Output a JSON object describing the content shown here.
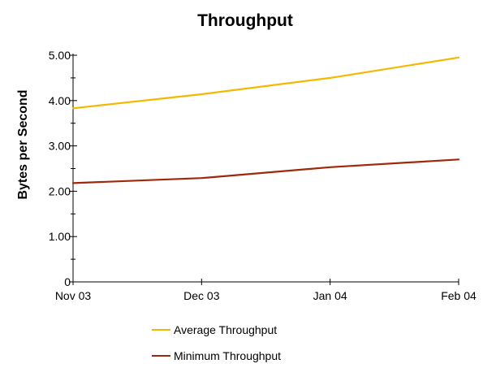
{
  "chart_data": {
    "type": "line",
    "title": "Throughput",
    "xlabel": "",
    "ylabel": "Bytes per Second",
    "categories": [
      "Nov 03",
      "Dec 03",
      "Jan 04",
      "Feb 04"
    ],
    "x": [
      0,
      1,
      2,
      3
    ],
    "ylim": [
      0,
      5
    ],
    "yticks": [
      0,
      1,
      2,
      3,
      4,
      5
    ],
    "ytick_labels": [
      "0",
      "1.00",
      "2.00",
      "3.00",
      "4.00",
      "5.00"
    ],
    "grid": false,
    "legend": "bottom",
    "series": [
      {
        "name": "Average Throughput",
        "color": "#f5b800",
        "values": [
          3.83,
          4.14,
          4.5,
          4.95
        ]
      },
      {
        "name": "Minimum Throughput",
        "color": "#a0280a",
        "values": [
          2.18,
          2.29,
          2.53,
          2.7
        ]
      }
    ]
  }
}
